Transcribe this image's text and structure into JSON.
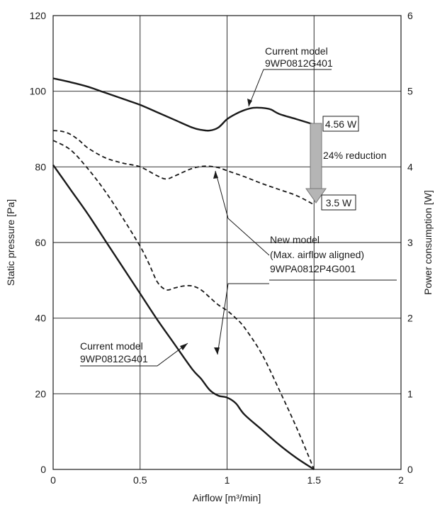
{
  "chart_data": {
    "type": "line",
    "xlabel": "Airflow [m³/min]",
    "ylabel": "Static pressure [Pa]",
    "y2label": "Power consumption [W]",
    "xlim": [
      0,
      2
    ],
    "ylim": [
      0,
      120
    ],
    "y2lim": [
      0,
      6
    ],
    "grid": true,
    "xticks": [
      "0",
      "0.5",
      "1",
      "1.5",
      "2"
    ],
    "yticks": [
      "0",
      "20",
      "40",
      "60",
      "80",
      "100",
      "120"
    ],
    "y2ticks": [
      "0",
      "1",
      "2",
      "3",
      "4",
      "5",
      "6"
    ],
    "series": [
      {
        "key": "pressure_current",
        "axis": "left",
        "style": "solid",
        "x": [
          0,
          0.1,
          0.2,
          0.3,
          0.4,
          0.5,
          0.6,
          0.7,
          0.8,
          0.85,
          0.9,
          0.95,
          1.0,
          1.05,
          1.1,
          1.2,
          1.3,
          1.4,
          1.5
        ],
        "y": [
          80.5,
          74,
          67.5,
          60.5,
          53.5,
          46.5,
          39.5,
          33,
          26.5,
          24,
          21,
          19.5,
          19,
          17.5,
          14.5,
          10.5,
          6.5,
          3,
          0
        ]
      },
      {
        "key": "pressure_new",
        "axis": "left",
        "style": "dashed",
        "x": [
          0,
          0.1,
          0.2,
          0.3,
          0.4,
          0.5,
          0.55,
          0.6,
          0.65,
          0.7,
          0.75,
          0.8,
          0.85,
          0.9,
          0.95,
          1.0,
          1.05,
          1.1,
          1.2,
          1.3,
          1.4,
          1.5
        ],
        "y": [
          87,
          84.5,
          79.5,
          73.5,
          66.5,
          59,
          54.5,
          49.5,
          47.5,
          48,
          48.5,
          48.5,
          47.5,
          45.5,
          43.5,
          42,
          40,
          37.5,
          30.5,
          21,
          11,
          0
        ]
      },
      {
        "key": "power_current",
        "axis": "right",
        "style": "solid",
        "x": [
          0,
          0.1,
          0.2,
          0.3,
          0.4,
          0.5,
          0.6,
          0.7,
          0.8,
          0.85,
          0.9,
          0.95,
          1.0,
          1.05,
          1.1,
          1.15,
          1.2,
          1.25,
          1.3,
          1.4,
          1.5
        ],
        "y": [
          5.17,
          5.12,
          5.06,
          4.98,
          4.9,
          4.82,
          4.72,
          4.62,
          4.52,
          4.49,
          4.48,
          4.52,
          4.63,
          4.7,
          4.75,
          4.78,
          4.78,
          4.76,
          4.7,
          4.63,
          4.56
        ]
      },
      {
        "key": "power_new",
        "axis": "right",
        "style": "dashed",
        "x": [
          0,
          0.05,
          0.1,
          0.15,
          0.2,
          0.3,
          0.4,
          0.5,
          0.6,
          0.65,
          0.7,
          0.8,
          0.88,
          0.95,
          1.0,
          1.1,
          1.2,
          1.3,
          1.4,
          1.5
        ],
        "y": [
          4.48,
          4.47,
          4.43,
          4.35,
          4.25,
          4.12,
          4.05,
          4.0,
          3.88,
          3.84,
          3.88,
          3.98,
          4.01,
          3.99,
          3.95,
          3.87,
          3.78,
          3.7,
          3.62,
          3.5
        ]
      }
    ],
    "annotations": {
      "top_label_1": "Current model",
      "top_label_2": "9WP0812G401",
      "bottom_label_1": "Current model",
      "bottom_label_2": "9WP0812G401",
      "new_label_1": "New model",
      "new_label_2": "(Max. airflow aligned)",
      "new_label_3": "9WPA0812P4G001",
      "value_current": "4.56 W",
      "value_new": "3.5 W",
      "reduction": "24% reduction"
    }
  }
}
